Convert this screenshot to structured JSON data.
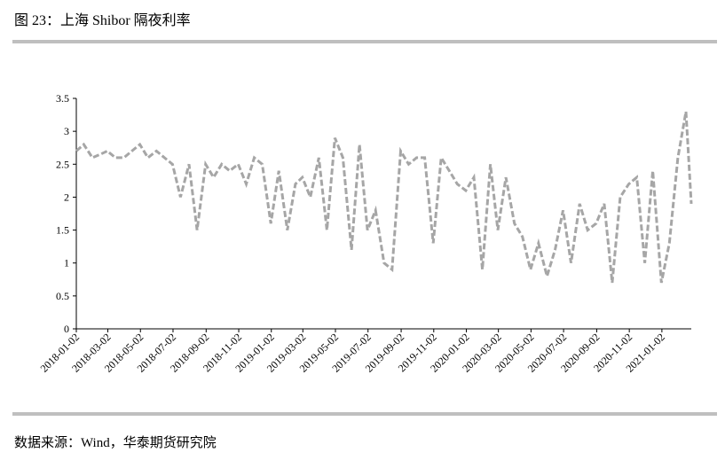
{
  "title": "图 23：上海 Shibor 隔夜利率",
  "source": "数据来源：Wind，华泰期货研究院",
  "chart_data": {
    "type": "line",
    "x": [
      "2018-01-02",
      "2018-01-16",
      "2018-02-01",
      "2018-02-16",
      "2018-03-01",
      "2018-03-16",
      "2018-04-01",
      "2018-04-16",
      "2018-05-01",
      "2018-05-16",
      "2018-06-01",
      "2018-06-16",
      "2018-07-01",
      "2018-07-16",
      "2018-08-01",
      "2018-08-16",
      "2018-09-01",
      "2018-09-16",
      "2018-10-01",
      "2018-10-16",
      "2018-11-01",
      "2018-11-16",
      "2018-12-01",
      "2018-12-16",
      "2019-01-01",
      "2019-01-16",
      "2019-02-01",
      "2019-02-16",
      "2019-03-01",
      "2019-03-16",
      "2019-04-01",
      "2019-04-16",
      "2019-05-01",
      "2019-05-16",
      "2019-06-01",
      "2019-06-16",
      "2019-07-01",
      "2019-07-16",
      "2019-08-01",
      "2019-08-16",
      "2019-09-01",
      "2019-09-16",
      "2019-10-01",
      "2019-10-16",
      "2019-11-01",
      "2019-11-16",
      "2019-12-01",
      "2019-12-16",
      "2020-01-01",
      "2020-01-16",
      "2020-02-01",
      "2020-02-16",
      "2020-03-01",
      "2020-03-16",
      "2020-04-01",
      "2020-04-16",
      "2020-05-01",
      "2020-05-16",
      "2020-06-01",
      "2020-06-16",
      "2020-07-01",
      "2020-07-16",
      "2020-08-01",
      "2020-08-16",
      "2020-09-01",
      "2020-09-16",
      "2020-10-01",
      "2020-10-16",
      "2020-11-01",
      "2020-11-16",
      "2020-12-01",
      "2020-12-16",
      "2021-01-01",
      "2021-01-16",
      "2021-02-01",
      "2021-02-16",
      "2021-02-26"
    ],
    "series": [
      {
        "name": "上海 Shibor 隔夜利率",
        "color": "#a6a6a6",
        "values": [
          2.7,
          2.8,
          2.6,
          2.65,
          2.7,
          2.6,
          2.6,
          2.7,
          2.8,
          2.6,
          2.7,
          2.6,
          2.5,
          2.0,
          2.5,
          1.5,
          2.5,
          2.3,
          2.5,
          2.4,
          2.5,
          2.2,
          2.6,
          2.5,
          1.6,
          2.4,
          1.5,
          2.2,
          2.3,
          2.0,
          2.6,
          1.5,
          2.9,
          2.6,
          1.2,
          2.8,
          1.5,
          1.8,
          1.0,
          0.9,
          2.7,
          2.5,
          2.6,
          2.6,
          1.3,
          2.6,
          2.4,
          2.2,
          2.1,
          2.3,
          0.9,
          2.5,
          1.5,
          2.3,
          1.6,
          1.4,
          0.9,
          1.3,
          0.8,
          1.2,
          1.8,
          1.0,
          1.9,
          1.5,
          1.6,
          1.9,
          0.7,
          2.0,
          2.2,
          2.3,
          1.0,
          2.4,
          0.7,
          1.3,
          2.6,
          3.3,
          1.9
        ]
      }
    ],
    "xlim": [
      "2018-01-02",
      "2021-02-26"
    ],
    "xticks": [
      "2018-01-02",
      "2018-03-02",
      "2018-05-02",
      "2018-07-02",
      "2018-09-02",
      "2018-11-02",
      "2019-01-02",
      "2019-03-02",
      "2019-05-02",
      "2019-07-02",
      "2019-09-02",
      "2019-11-02",
      "2020-01-02",
      "2020-03-02",
      "2020-05-02",
      "2020-07-02",
      "2020-09-02",
      "2020-11-02",
      "2021-01-02"
    ],
    "ylim": [
      0,
      3.5
    ],
    "yticks": [
      0,
      0.5,
      1,
      1.5,
      2,
      2.5,
      3,
      3.5
    ]
  }
}
